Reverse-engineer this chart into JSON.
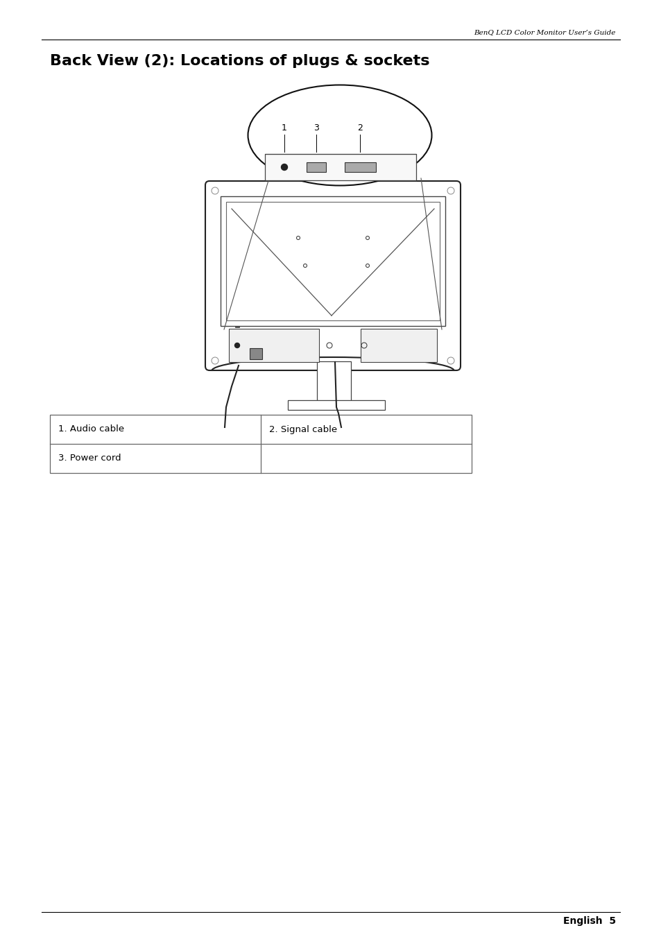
{
  "title": "Back View (2): Locations of plugs & sockets",
  "header_text": "BenQ LCD Color Monitor User’s Guide",
  "footer_text": "English  5",
  "table": [
    [
      "1. Audio cable",
      "2. Signal cable"
    ],
    [
      "3. Power cord",
      ""
    ]
  ],
  "background_color": "#ffffff",
  "text_color": "#000000"
}
